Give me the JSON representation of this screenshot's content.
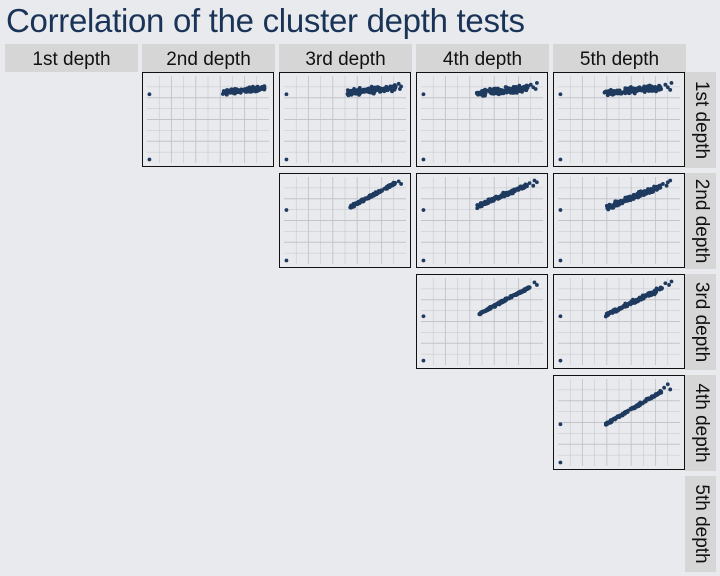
{
  "chart_data": {
    "type": "scatter",
    "title": "Correlation of the cluster depth tests",
    "column_labels": [
      "1st depth",
      "2nd depth",
      "3rd depth",
      "4th depth",
      "5th depth"
    ],
    "row_labels": [
      "1st depth",
      "2nd depth",
      "3rd depth",
      "4th depth",
      "5th depth"
    ],
    "grid": true,
    "colors": {
      "points": "#1f3a5f",
      "panel": "#e9eaee",
      "grid": "#c2c4c9",
      "strip": "#d6d6d6",
      "title": "#1a3457"
    },
    "panels": [
      {
        "row": "1st depth",
        "col": "2nd depth",
        "xlim": [
          0,
          1
        ],
        "ylim": [
          0,
          1
        ],
        "outliers": [
          [
            0.02,
            0.79
          ],
          [
            0.02,
            0.04
          ]
        ],
        "cluster": {
          "x": [
            0.62,
            0.97
          ],
          "slope": 0.15,
          "y_at_start": 0.81,
          "spread": 0.04,
          "n": 140
        }
      },
      {
        "row": "1st depth",
        "col": "3rd depth",
        "xlim": [
          0,
          1
        ],
        "ylim": [
          0,
          1
        ],
        "outliers": [
          [
            0.02,
            0.79
          ],
          [
            0.02,
            0.04
          ]
        ],
        "cluster": {
          "x": [
            0.52,
            0.92
          ],
          "slope": 0.14,
          "y_at_start": 0.81,
          "spread": 0.05,
          "n": 160
        },
        "extra_points": [
          [
            0.94,
            0.91
          ],
          [
            0.96,
            0.88
          ],
          [
            0.95,
            0.85
          ]
        ]
      },
      {
        "row": "1st depth",
        "col": "4th depth",
        "xlim": [
          0,
          1
        ],
        "ylim": [
          0,
          1
        ],
        "outliers": [
          [
            0.02,
            0.79
          ],
          [
            0.02,
            0.04
          ]
        ],
        "cluster": {
          "x": [
            0.45,
            0.88
          ],
          "slope": 0.14,
          "y_at_start": 0.8,
          "spread": 0.05,
          "n": 170
        },
        "extra_points": [
          [
            0.9,
            0.9
          ],
          [
            0.92,
            0.87
          ],
          [
            0.94,
            0.85
          ],
          [
            0.95,
            0.92
          ]
        ]
      },
      {
        "row": "1st depth",
        "col": "5th depth",
        "xlim": [
          0,
          1
        ],
        "ylim": [
          0,
          1
        ],
        "outliers": [
          [
            0.02,
            0.79
          ],
          [
            0.02,
            0.04
          ]
        ],
        "cluster": {
          "x": [
            0.38,
            0.85
          ],
          "slope": 0.14,
          "y_at_start": 0.8,
          "spread": 0.05,
          "n": 170
        },
        "extra_points": [
          [
            0.88,
            0.9
          ],
          [
            0.9,
            0.87
          ],
          [
            0.92,
            0.84
          ],
          [
            0.93,
            0.92
          ]
        ]
      },
      {
        "row": "2nd depth",
        "col": "3rd depth",
        "xlim": [
          0,
          1
        ],
        "ylim": [
          0,
          1
        ],
        "outliers": [
          [
            0.02,
            0.62
          ],
          [
            0.02,
            0.04
          ]
        ],
        "cluster": {
          "x": [
            0.54,
            0.92
          ],
          "slope": 0.75,
          "y_at_start": 0.65,
          "spread": 0.025,
          "n": 140
        },
        "extra_points": [
          [
            0.94,
            0.95
          ],
          [
            0.96,
            0.92
          ]
        ]
      },
      {
        "row": "2nd depth",
        "col": "4th depth",
        "xlim": [
          0,
          1
        ],
        "ylim": [
          0,
          1
        ],
        "outliers": [
          [
            0.02,
            0.62
          ],
          [
            0.02,
            0.04
          ]
        ],
        "cluster": {
          "x": [
            0.46,
            0.87
          ],
          "slope": 0.6,
          "y_at_start": 0.66,
          "spread": 0.035,
          "n": 150
        },
        "extra_points": [
          [
            0.89,
            0.93
          ],
          [
            0.92,
            0.9
          ],
          [
            0.93,
            0.96
          ],
          [
            0.95,
            0.94
          ]
        ]
      },
      {
        "row": "2nd depth",
        "col": "5th depth",
        "xlim": [
          0,
          1
        ],
        "ylim": [
          0,
          1
        ],
        "outliers": [
          [
            0.02,
            0.62
          ],
          [
            0.02,
            0.04
          ]
        ],
        "cluster": {
          "x": [
            0.4,
            0.84
          ],
          "slope": 0.55,
          "y_at_start": 0.65,
          "spread": 0.045,
          "n": 150
        },
        "extra_points": [
          [
            0.86,
            0.92
          ],
          [
            0.89,
            0.9
          ],
          [
            0.92,
            0.96
          ],
          [
            0.9,
            0.94
          ]
        ]
      },
      {
        "row": "3rd depth",
        "col": "4th depth",
        "xlim": [
          0,
          1
        ],
        "ylim": [
          0,
          1
        ],
        "outliers": [
          [
            0.02,
            0.56
          ],
          [
            0.02,
            0.05
          ]
        ],
        "cluster": {
          "x": [
            0.47,
            0.9
          ],
          "slope": 0.75,
          "y_at_start": 0.58,
          "spread": 0.022,
          "n": 140
        },
        "extra_points": [
          [
            0.93,
            0.95
          ],
          [
            0.95,
            0.92
          ]
        ]
      },
      {
        "row": "3rd depth",
        "col": "5th depth",
        "xlim": [
          0,
          1
        ],
        "ylim": [
          0,
          1
        ],
        "outliers": [
          [
            0.02,
            0.56
          ],
          [
            0.02,
            0.05
          ]
        ],
        "cluster": {
          "x": [
            0.39,
            0.86
          ],
          "slope": 0.68,
          "y_at_start": 0.57,
          "spread": 0.035,
          "n": 150
        },
        "extra_points": [
          [
            0.88,
            0.94
          ],
          [
            0.91,
            0.92
          ],
          [
            0.93,
            0.96
          ]
        ]
      },
      {
        "row": "4th depth",
        "col": "5th depth",
        "xlim": [
          0,
          1
        ],
        "ylim": [
          0,
          1
        ],
        "outliers": [
          [
            0.02,
            0.48
          ],
          [
            0.02,
            0.04
          ]
        ],
        "cluster": {
          "x": [
            0.39,
            0.85
          ],
          "slope": 0.82,
          "y_at_start": 0.48,
          "spread": 0.02,
          "n": 140
        },
        "extra_points": [
          [
            0.87,
            0.9
          ],
          [
            0.9,
            0.94
          ],
          [
            0.92,
            0.88
          ]
        ]
      }
    ]
  }
}
